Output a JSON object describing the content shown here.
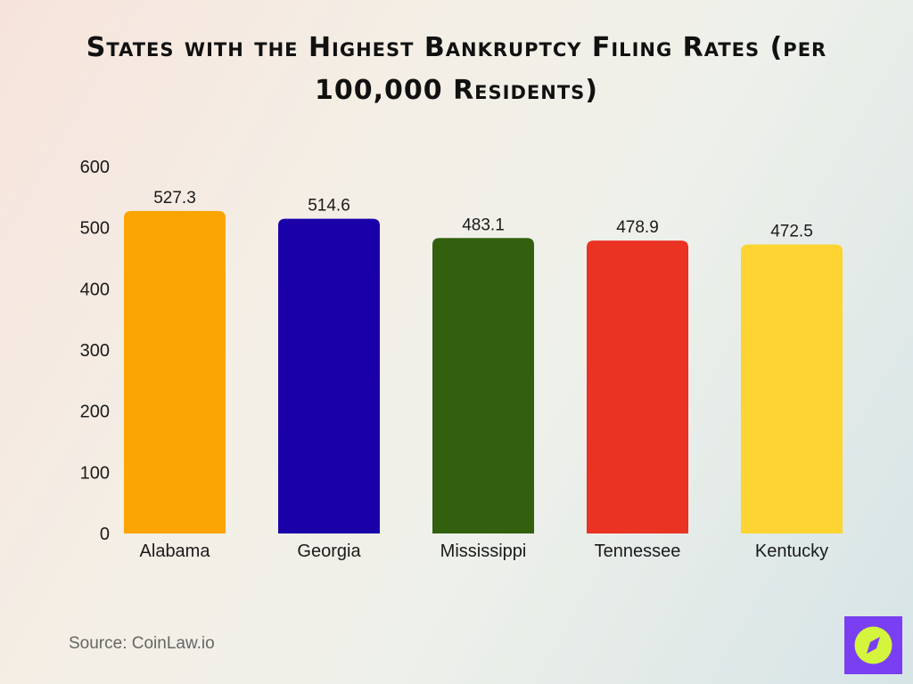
{
  "chart_data": {
    "type": "bar",
    "title": "States with the Highest Bankruptcy Filing Rates (per 100,000 Residents)",
    "categories": [
      "Alabama",
      "Georgia",
      "Mississippi",
      "Tennessee",
      "Kentucky"
    ],
    "values": [
      527.3,
      514.6,
      483.1,
      478.9,
      472.5
    ],
    "value_labels": [
      "527.3",
      "514.6",
      "483.1",
      "478.9",
      "472.5"
    ],
    "colors": [
      "#fba504",
      "#1a00a8",
      "#32600f",
      "#ea3323",
      "#fdd431"
    ],
    "ylim": [
      0,
      600
    ],
    "yticks": [
      "0",
      "100",
      "200",
      "300",
      "400",
      "500",
      "600"
    ],
    "grid": false,
    "xlabel": "",
    "ylabel": ""
  },
  "source": "Source: CoinLaw.io",
  "logo": {
    "icon": "compass-icon",
    "bg": "#7a3ff2",
    "fg": "#d4f53c"
  }
}
